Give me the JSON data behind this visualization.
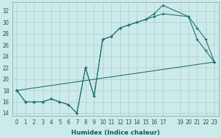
{
  "xlabel": "Humidex (Indice chaleur)",
  "bg_color": "#cceaea",
  "grid_color": "#aacccc",
  "line_color": "#1a6e6e",
  "xlim": [
    -0.5,
    23.5
  ],
  "ylim": [
    13.5,
    33.5
  ],
  "yticks": [
    14,
    16,
    18,
    20,
    22,
    24,
    26,
    28,
    30,
    32
  ],
  "xtick_vals": [
    0,
    1,
    2,
    3,
    4,
    5,
    6,
    7,
    8,
    9,
    10,
    11,
    12,
    13,
    14,
    15,
    16,
    17,
    19,
    20,
    21,
    22,
    23
  ],
  "xtick_labels": [
    "0",
    "1",
    "2",
    "3",
    "4",
    "5",
    "6",
    "7",
    "8",
    "9",
    "10",
    "11",
    "12",
    "13",
    "14",
    "15",
    "16",
    "17",
    "19",
    "20",
    "21",
    "22",
    "23"
  ],
  "line1_x": [
    0,
    1,
    2,
    3,
    4,
    5,
    6,
    7,
    8,
    9,
    10,
    11,
    12,
    13,
    14,
    15,
    16,
    17,
    20,
    21,
    22,
    23
  ],
  "line1_y": [
    18,
    16,
    16,
    16,
    16.5,
    16,
    15.5,
    14,
    22,
    17,
    27,
    27.5,
    29,
    29.5,
    30,
    30.5,
    31.5,
    33,
    31,
    27,
    25,
    23
  ],
  "line2_x": [
    0,
    1,
    2,
    3,
    4,
    5,
    6,
    7,
    8,
    9,
    10,
    11,
    12,
    13,
    14,
    15,
    16,
    17,
    20,
    21,
    22,
    23
  ],
  "line2_y": [
    18,
    16,
    16,
    16,
    16.5,
    16,
    15.5,
    14,
    22,
    17,
    27,
    27.5,
    29,
    29.5,
    30,
    30.5,
    31,
    31.5,
    31,
    29,
    27,
    23
  ],
  "line3_x": [
    0,
    23
  ],
  "line3_y": [
    18,
    23
  ]
}
